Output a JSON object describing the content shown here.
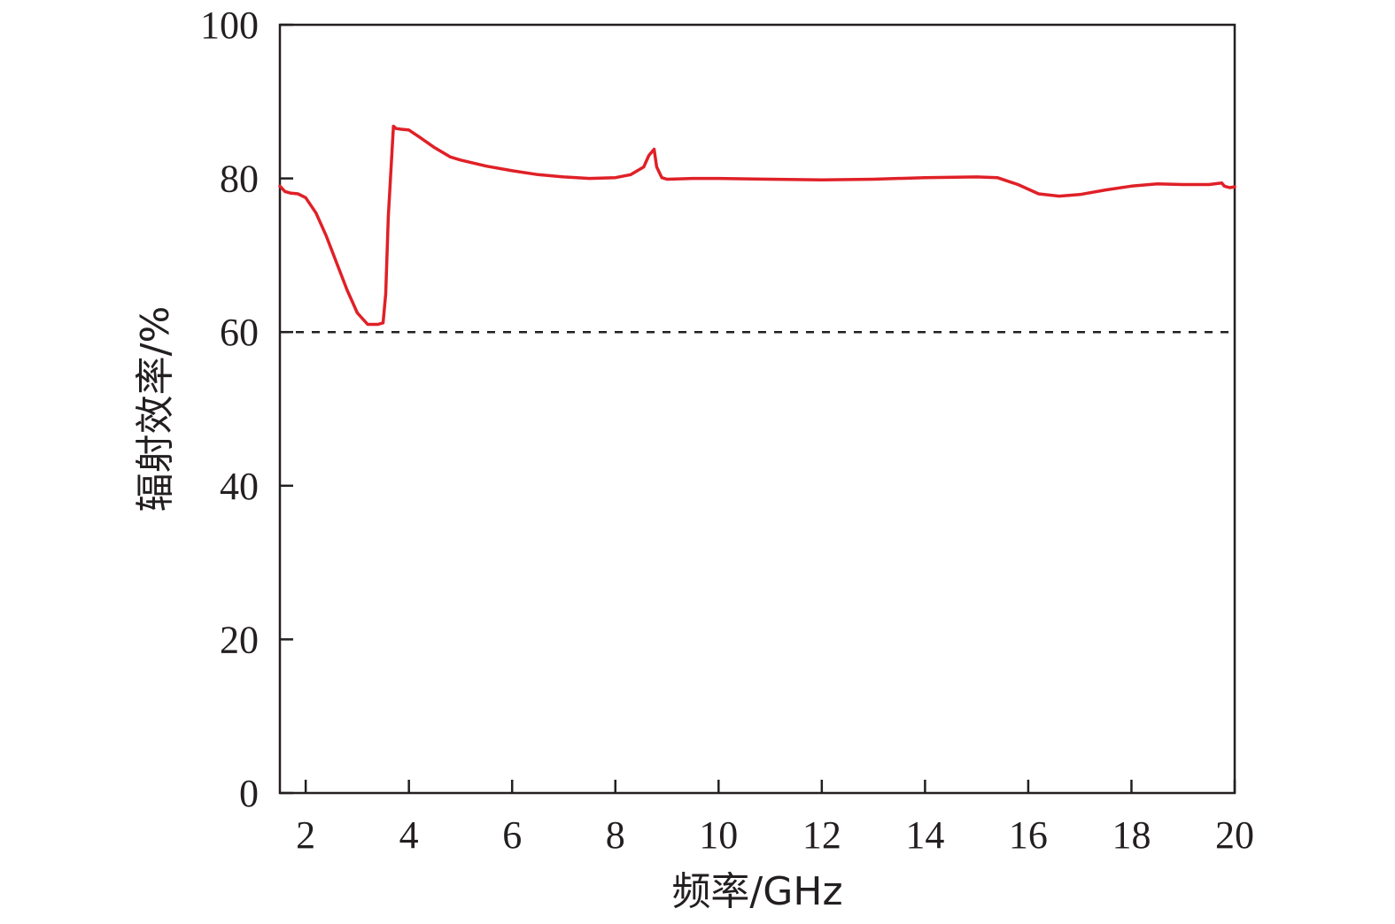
{
  "chart_data": {
    "type": "line",
    "title": "",
    "xlabel": "频率/GHz",
    "ylabel": "辐射效率/%",
    "xlim": [
      1.5,
      20
    ],
    "ylim": [
      0,
      100
    ],
    "x_ticks": [
      2,
      4,
      6,
      8,
      10,
      12,
      14,
      16,
      18,
      20
    ],
    "y_ticks": [
      0,
      20,
      40,
      60,
      80,
      100
    ],
    "grid": false,
    "legend": "none",
    "colors": {
      "series": "#e02027",
      "axis": "#231f20",
      "reference": "#231f20"
    },
    "reference_lines": [
      {
        "y": 60,
        "style": "dashed"
      }
    ],
    "series": [
      {
        "x": [
          1.5,
          1.6,
          1.7,
          1.85,
          2.0,
          2.2,
          2.4,
          2.6,
          2.8,
          3.0,
          3.2,
          3.4,
          3.5,
          3.55,
          3.6,
          3.7,
          3.75,
          3.85,
          4.0,
          4.2,
          4.5,
          4.8,
          5.0,
          5.5,
          6.0,
          6.5,
          7.0,
          7.5,
          8.0,
          8.3,
          8.55,
          8.65,
          8.75,
          8.8,
          8.9,
          9.0,
          9.5,
          10.0,
          11.0,
          12.0,
          13.0,
          14.0,
          15.0,
          15.4,
          15.8,
          16.2,
          16.6,
          17.0,
          17.5,
          18.0,
          18.5,
          19.0,
          19.5,
          19.75,
          19.8,
          19.9,
          20.0
        ],
        "y": [
          79.0,
          78.3,
          78.1,
          78.0,
          77.5,
          75.5,
          72.5,
          69.0,
          65.5,
          62.5,
          61.0,
          61.0,
          61.2,
          65.0,
          75.0,
          86.8,
          86.5,
          86.4,
          86.3,
          85.4,
          84.0,
          82.8,
          82.4,
          81.6,
          81.0,
          80.5,
          80.2,
          80.0,
          80.1,
          80.5,
          81.5,
          83.0,
          83.8,
          81.5,
          80.1,
          79.9,
          80.0,
          80.0,
          79.9,
          79.8,
          79.9,
          80.1,
          80.2,
          80.1,
          79.2,
          78.0,
          77.7,
          77.9,
          78.5,
          79.0,
          79.3,
          79.2,
          79.2,
          79.4,
          79.0,
          78.8,
          78.9
        ]
      }
    ]
  }
}
